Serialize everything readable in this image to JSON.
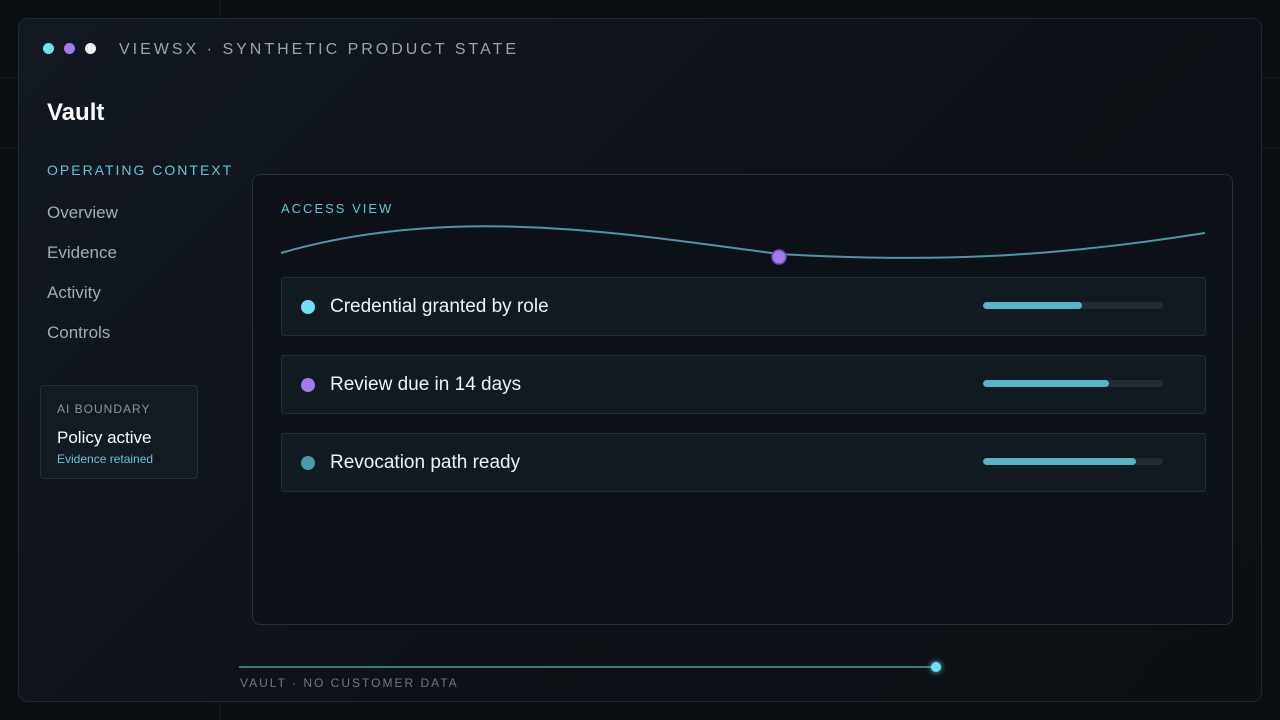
{
  "window": {
    "title": "VIEWSX · SYNTHETIC PRODUCT STATE",
    "dots": [
      {
        "color": "#6ee1f0"
      },
      {
        "color": "#a37bf0"
      },
      {
        "color": "#f3f3f3"
      }
    ]
  },
  "app": {
    "title": "Vault"
  },
  "sidebar": {
    "section_label": "OPERATING CONTEXT",
    "items": [
      {
        "label": "Overview"
      },
      {
        "label": "Evidence"
      },
      {
        "label": "Activity"
      },
      {
        "label": "Controls"
      }
    ],
    "boundary": {
      "label": "AI BOUNDARY",
      "status": "Policy active",
      "sub": "Evidence retained"
    }
  },
  "panel": {
    "label": "ACCESS VIEW",
    "rows": [
      {
        "label": "Credential granted by role",
        "dot_color": "#6ee1f0",
        "progress": 0.55
      },
      {
        "label": "Review due in 14 days",
        "dot_color": "#a37bf0",
        "progress": 0.7
      },
      {
        "label": "Revocation path ready",
        "dot_color": "#4a9aa8",
        "progress": 0.85
      }
    ]
  },
  "footer": {
    "text": "VAULT · NO CUSTOMER DATA",
    "progress": 0.99
  },
  "colors": {
    "accent_cyan": "#5fc9d6",
    "accent_purple": "#a37bf0",
    "bar_fill": "#5ab4c8"
  }
}
